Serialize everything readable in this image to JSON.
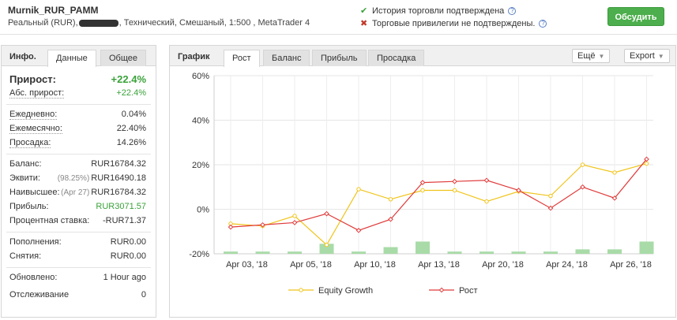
{
  "header": {
    "account_name": "Murnik_RUR_PAMM",
    "desc_prefix": "Реальный (RUR),",
    "desc_suffix": ", Технический, Смешаный, 1:500 , MetaTrader 4",
    "history_verified": "История торговли подтверждена",
    "privileges_not_verified": "Торговые привилегии не подтверждены.",
    "help": "?",
    "discuss_label": "Обсудить"
  },
  "left": {
    "title": "Инфо.",
    "tabs": [
      "Данные",
      "Общее"
    ],
    "growth_label": "Прирост:",
    "growth_value": "+22.4%",
    "abs_label": "Абс. прирост:",
    "abs_value": "+22.4%",
    "daily_label": "Ежедневно:",
    "daily_value": "0.04%",
    "monthly_label": "Ежемесячно:",
    "monthly_value": "22.40%",
    "drawdown_label": "Просадка:",
    "drawdown_value": "14.26%",
    "balance_label": "Баланс:",
    "balance_value": "RUR16784.32",
    "equity_label": "Эквити:",
    "equity_note": "(98.25%)",
    "equity_value": "RUR16490.18",
    "highest_label": "Наивысшее:",
    "highest_note": "(Apr 27)",
    "highest_value": "RUR16784.32",
    "profit_label": "Прибыль:",
    "profit_value": "RUR3071.57",
    "interest_label": "Процентная ставка:",
    "interest_value": "-RUR71.37",
    "deposits_label": "Пополнения:",
    "deposits_value": "RUR0.00",
    "withdrawals_label": "Снятия:",
    "withdrawals_value": "RUR0.00",
    "updated_label": "Обновлено:",
    "updated_value": "1 Hour ago",
    "tracking_label": "Отслеживание",
    "tracking_value": "0"
  },
  "right": {
    "title": "График",
    "tabs": [
      "Рост",
      "Баланс",
      "Прибыль",
      "Просадка"
    ],
    "more_label": "Ещё",
    "export_label": "Export"
  },
  "colors": {
    "equity": "#f0c419",
    "growth": "#e03b3b",
    "bars": "#a8dba8",
    "green": "#3aa23a"
  },
  "chart_data": {
    "type": "line",
    "ylim": [
      -20,
      60
    ],
    "y_ticks": [
      "60%",
      "40%",
      "20%",
      "0%",
      "-20%"
    ],
    "x_tick_labels": [
      "Apr 03, '18",
      "Apr 05, '18",
      "Apr 10, '18",
      "Apr 13, '18",
      "Apr 20, '18",
      "Apr 24, '18",
      "Apr 26, '18"
    ],
    "series": [
      {
        "name": "Equity Growth",
        "values": [
          -6.5,
          -7.5,
          -3,
          -16,
          9,
          4.5,
          8.5,
          8.5,
          3.5,
          8,
          6,
          20,
          16.5,
          20.5
        ]
      },
      {
        "name": "Рост",
        "values": [
          -8,
          -7,
          -6,
          -2,
          -9.5,
          -4.5,
          12,
          12.5,
          13,
          8.5,
          0.5,
          10,
          5,
          22.5
        ]
      }
    ],
    "bars": [
      1,
      1,
      1,
      4.5,
      1,
      3,
      5.5,
      1,
      1,
      1,
      1,
      2,
      2,
      5.5
    ],
    "grid": true,
    "legend": "bottom"
  }
}
